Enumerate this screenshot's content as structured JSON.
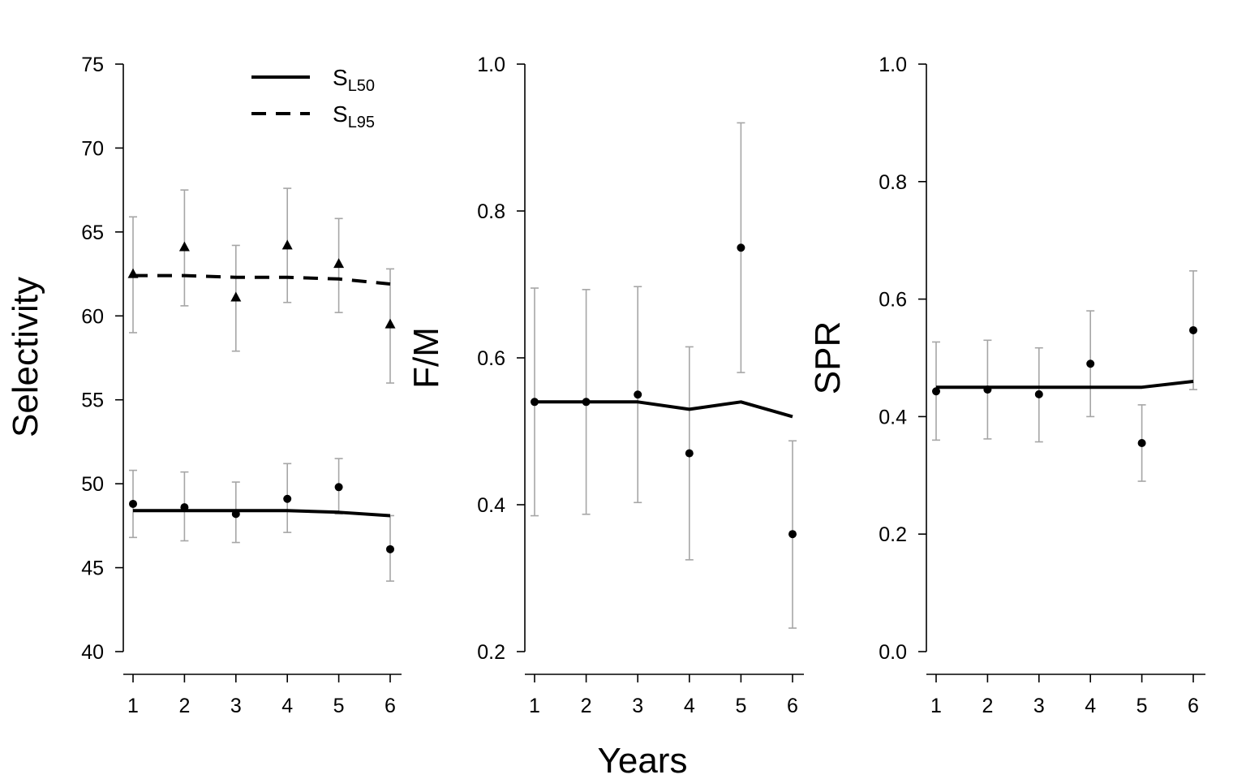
{
  "xlabel": "Years",
  "legend": {
    "entries": [
      {
        "main": "S",
        "sub": "L50",
        "style": "solid"
      },
      {
        "main": "S",
        "sub": "L95",
        "style": "dashed"
      }
    ]
  },
  "colors": {
    "line": "#000000",
    "error_bar": "#a6a6a6",
    "point": "#000000"
  },
  "chart_data": [
    {
      "type": "line",
      "panel": "selectivity",
      "ylabel": "Selectivity",
      "x": [
        1,
        2,
        3,
        4,
        5,
        6
      ],
      "xticks": [
        "1",
        "2",
        "3",
        "4",
        "5",
        "6"
      ],
      "ylim": [
        40,
        75
      ],
      "yticks": [
        "40",
        "45",
        "50",
        "55",
        "60",
        "65",
        "70",
        "75"
      ],
      "grid": false,
      "legend_position": "top-right",
      "series": [
        {
          "name": "SL50",
          "line_style": "solid",
          "marker": "circle",
          "fitted": [
            48.4,
            48.4,
            48.4,
            48.4,
            48.3,
            48.1
          ],
          "observed": [
            48.8,
            48.6,
            48.2,
            49.1,
            49.8,
            46.1
          ],
          "lower": [
            46.8,
            46.6,
            46.5,
            47.1,
            48.2,
            44.2
          ],
          "upper": [
            50.8,
            50.7,
            50.1,
            51.2,
            51.5,
            48.1
          ]
        },
        {
          "name": "SL95",
          "line_style": "dashed",
          "marker": "triangle",
          "fitted": [
            62.4,
            62.4,
            62.3,
            62.3,
            62.2,
            61.9
          ],
          "observed": [
            62.5,
            64.1,
            61.1,
            64.2,
            63.1,
            59.5
          ],
          "lower": [
            59.0,
            60.6,
            57.9,
            60.8,
            60.2,
            56.0
          ],
          "upper": [
            65.9,
            67.5,
            64.2,
            67.6,
            65.8,
            62.8
          ]
        }
      ]
    },
    {
      "type": "line",
      "panel": "fm",
      "ylabel": "F/M",
      "x": [
        1,
        2,
        3,
        4,
        5,
        6
      ],
      "xticks": [
        "1",
        "2",
        "3",
        "4",
        "5",
        "6"
      ],
      "ylim": [
        0.2,
        1.0
      ],
      "yticks": [
        "0.2",
        "0.4",
        "0.6",
        "0.8",
        "1.0"
      ],
      "grid": false,
      "series": [
        {
          "line_style": "solid",
          "marker": "circle",
          "fitted": [
            0.54,
            0.54,
            0.54,
            0.53,
            0.54,
            0.52
          ],
          "observed": [
            0.54,
            0.54,
            0.55,
            0.47,
            0.75,
            0.36
          ],
          "lower": [
            0.385,
            0.387,
            0.403,
            0.325,
            0.58,
            0.232
          ],
          "upper": [
            0.695,
            0.693,
            0.697,
            0.615,
            0.92,
            0.487
          ]
        }
      ]
    },
    {
      "type": "line",
      "panel": "spr",
      "ylabel": "SPR",
      "x": [
        1,
        2,
        3,
        4,
        5,
        6
      ],
      "xticks": [
        "1",
        "2",
        "3",
        "4",
        "5",
        "6"
      ],
      "ylim": [
        0.0,
        1.0
      ],
      "yticks": [
        "0.0",
        "0.2",
        "0.4",
        "0.6",
        "0.8",
        "1.0"
      ],
      "grid": false,
      "series": [
        {
          "line_style": "solid",
          "marker": "circle",
          "fitted": [
            0.45,
            0.45,
            0.45,
            0.45,
            0.45,
            0.46
          ],
          "observed": [
            0.443,
            0.446,
            0.438,
            0.49,
            0.355,
            0.547
          ],
          "lower": [
            0.36,
            0.362,
            0.357,
            0.4,
            0.29,
            0.446
          ],
          "upper": [
            0.527,
            0.53,
            0.517,
            0.58,
            0.42,
            0.648
          ]
        }
      ]
    }
  ]
}
